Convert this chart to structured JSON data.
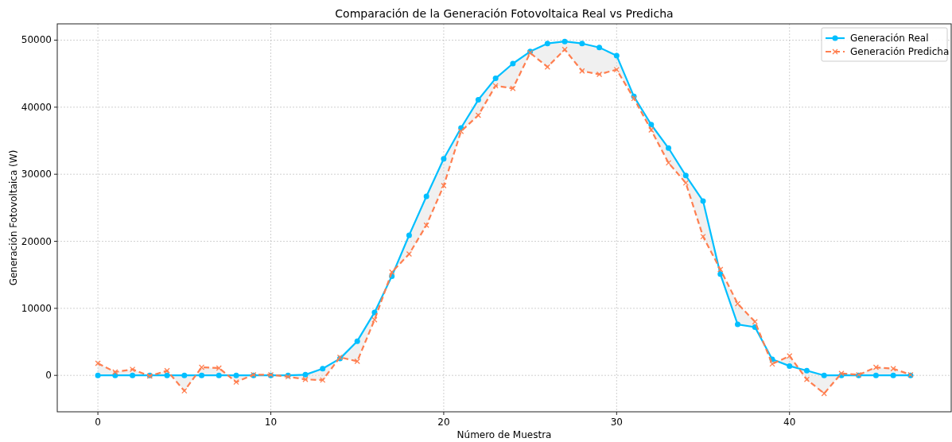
{
  "chart_data": {
    "type": "line",
    "title": "Comparación de la Generación Fotovoltaica Real vs Predicha",
    "xlabel": "Número de Muestra",
    "ylabel": "Generación Fotovoltaica (W)",
    "x": [
      0,
      1,
      2,
      3,
      4,
      5,
      6,
      7,
      8,
      9,
      10,
      11,
      12,
      13,
      14,
      15,
      16,
      17,
      18,
      19,
      20,
      21,
      22,
      23,
      24,
      25,
      26,
      27,
      28,
      29,
      30,
      31,
      32,
      33,
      34,
      35,
      36,
      37,
      38,
      39,
      40,
      41,
      42,
      43,
      44,
      45,
      46,
      47
    ],
    "series": [
      {
        "name": "Generación Real",
        "color": "#00bfff",
        "marker": "circle",
        "line_style": "solid",
        "values": [
          0,
          0,
          0,
          0,
          0,
          0,
          0,
          0,
          0,
          0,
          0,
          0,
          100,
          1000,
          2500,
          5100,
          9400,
          14800,
          20900,
          26700,
          32300,
          36900,
          41100,
          44300,
          46500,
          48300,
          49500,
          49800,
          49500,
          48900,
          47700,
          41600,
          37400,
          33900,
          29800,
          26000,
          15100,
          7600,
          7200,
          2400,
          1400,
          700,
          0,
          0,
          0,
          0,
          0,
          0
        ],
        "lower": [
          1800,
          500,
          900,
          -100,
          700,
          -2300,
          1200,
          1100,
          -1000,
          100,
          100,
          -200,
          -600,
          -700,
          2700,
          2100,
          8300,
          15400,
          18100,
          22400,
          28300,
          36400,
          38800,
          43200,
          42800,
          48100,
          46000,
          48600,
          45400,
          44900,
          45600,
          41300,
          36600,
          31700,
          28700,
          20700,
          15800,
          10700,
          8000,
          1700,
          2900,
          -600,
          -2700,
          300,
          100,
          1200,
          1000,
          100
        ],
        "upper": [
          0,
          0,
          0,
          0,
          0,
          0,
          0,
          0,
          0,
          0,
          0,
          0,
          100,
          1000,
          2500,
          5100,
          9400,
          14800,
          20900,
          26700,
          32300,
          36900,
          41100,
          44300,
          46500,
          48300,
          49500,
          49800,
          49500,
          48900,
          47700,
          41600,
          37400,
          33900,
          29800,
          26000,
          15100,
          7600,
          7200,
          2400,
          1400,
          700,
          0,
          0,
          0,
          0,
          0,
          0
        ]
      },
      {
        "name": "Generación Predicha",
        "color": "#ff7f50",
        "marker": "cross",
        "line_style": "dashed",
        "values": [
          1800,
          500,
          900,
          -100,
          700,
          -2300,
          1200,
          1100,
          -1000,
          100,
          100,
          -200,
          -600,
          -700,
          2700,
          2100,
          8300,
          15400,
          18100,
          22400,
          28300,
          36400,
          38800,
          43200,
          42800,
          48100,
          46000,
          48600,
          45400,
          44900,
          45600,
          41300,
          36600,
          31700,
          28700,
          20700,
          15800,
          10700,
          8000,
          1700,
          2900,
          -600,
          -2700,
          300,
          100,
          1200,
          1000,
          100
        ]
      }
    ],
    "xlim": [
      -2.35,
      49.35
    ],
    "ylim": [
      -5430,
      52430
    ],
    "xticks": [
      0,
      10,
      20,
      30,
      40
    ],
    "yticks": [
      0,
      10000,
      20000,
      30000,
      40000,
      50000
    ],
    "grid": true,
    "legend": "top right"
  }
}
